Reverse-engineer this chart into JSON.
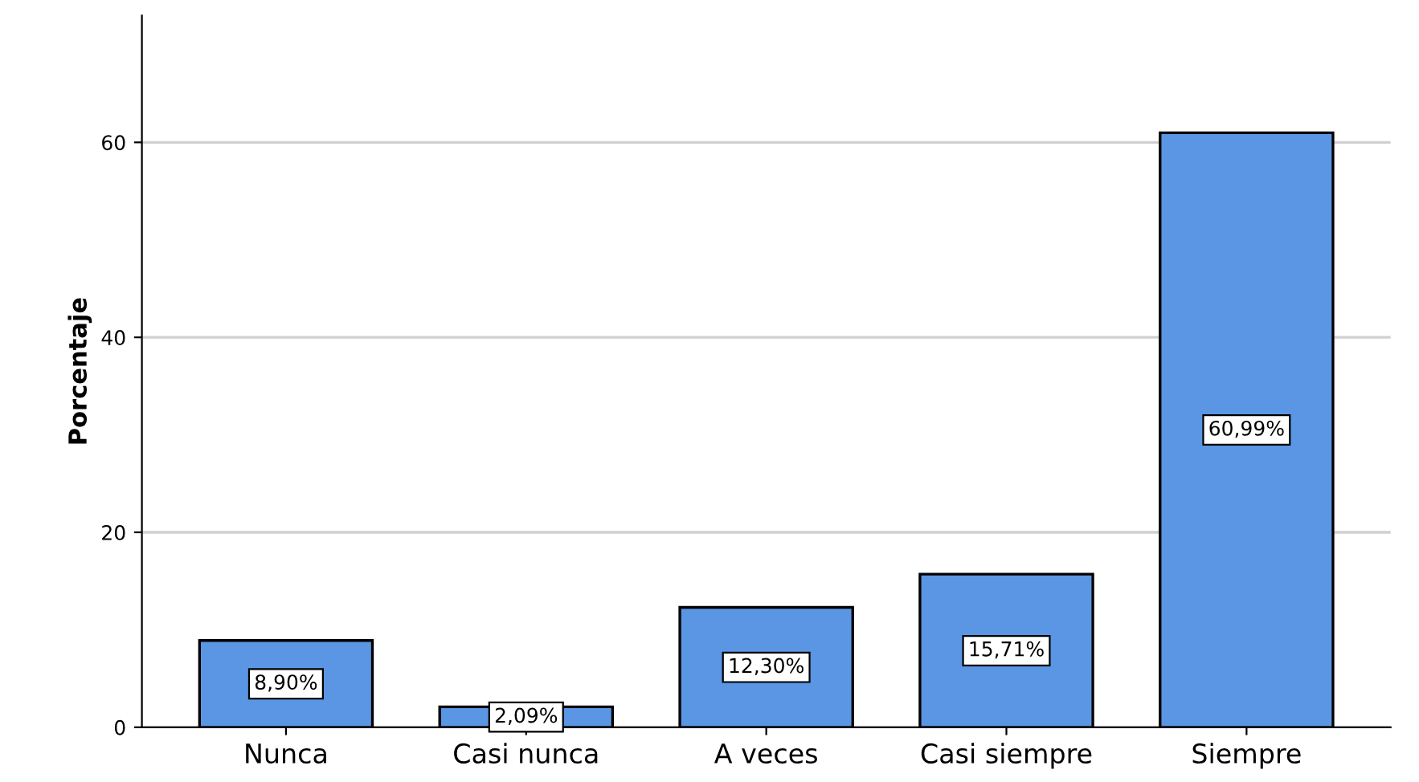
{
  "chart_data": {
    "type": "bar",
    "ylabel": "Porcentaje",
    "categories": [
      "Nunca",
      "Casi nunca",
      "A veces",
      "Casi siempre",
      "Siempre"
    ],
    "values": [
      8.9,
      2.09,
      12.3,
      15.71,
      60.99
    ],
    "value_labels": [
      "8,90%",
      "2,09%",
      "12,30%",
      "15,71%",
      "60,99%"
    ],
    "color": "#5a96e3",
    "ylim": [
      0,
      73
    ],
    "yticks": [
      0,
      20,
      40,
      60
    ],
    "grid": "y"
  }
}
